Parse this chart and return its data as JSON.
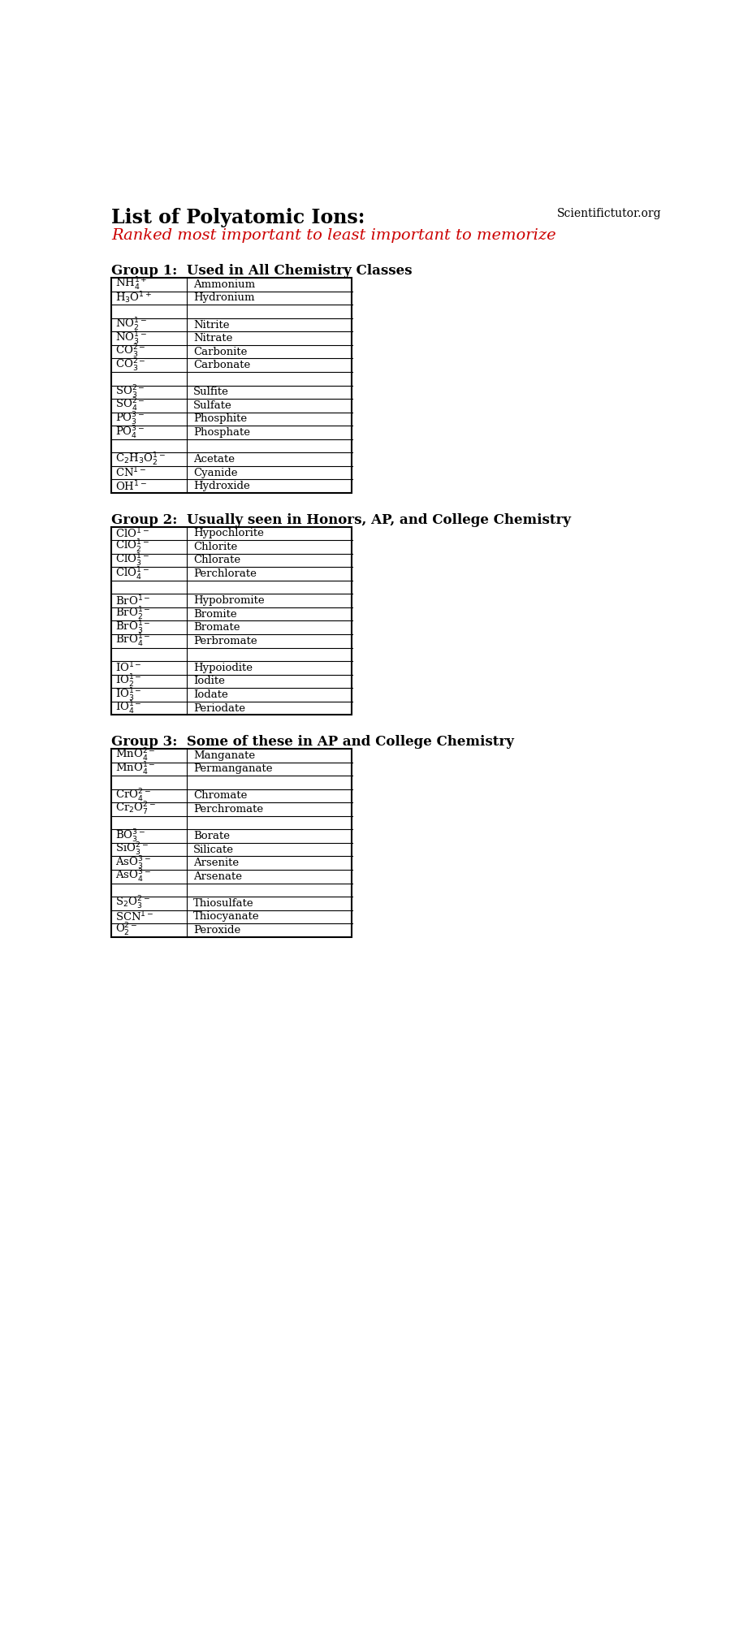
{
  "title": "List of Polyatomic Ions:",
  "subtitle": "Ranked most important to least important to memorize",
  "website": "Scientifictutor.org",
  "group1_header": "Group 1:  Used in All Chemistry Classes",
  "group2_header": "Group 2:  Usually seen in Honors, AP, and College Chemistry",
  "group3_header": "Group 3:  Some of these in AP and College Chemistry",
  "group1_rows": [
    [
      "NH$_4^{1+}$",
      "Ammonium"
    ],
    [
      "H$_3$O$^{1+}$",
      "Hydronium"
    ],
    [
      "",
      ""
    ],
    [
      "NO$_2^{1-}$",
      "Nitrite"
    ],
    [
      "NO$_3^{1-}$",
      "Nitrate"
    ],
    [
      "CO$_3^{2-}$",
      "Carbonite"
    ],
    [
      "CO$_3^{2-}$",
      "Carbonate"
    ],
    [
      "",
      ""
    ],
    [
      "SO$_3^{2-}$",
      "Sulfite"
    ],
    [
      "SO$_4^{2-}$",
      "Sulfate"
    ],
    [
      "PO$_3^{3-}$",
      "Phosphite"
    ],
    [
      "PO$_4^{3-}$",
      "Phosphate"
    ],
    [
      "",
      ""
    ],
    [
      "C$_2$H$_3$O$_2^{1-}$",
      "Acetate"
    ],
    [
      "CN$^{1-}$",
      "Cyanide"
    ],
    [
      "OH$^{1-}$",
      "Hydroxide"
    ]
  ],
  "group2_rows": [
    [
      "ClO$^{1-}$",
      "Hypochlorite"
    ],
    [
      "ClO$_2^{1-}$",
      "Chlorite"
    ],
    [
      "ClO$_3^{1-}$",
      "Chlorate"
    ],
    [
      "ClO$_4^{1-}$",
      "Perchlorate"
    ],
    [
      "",
      ""
    ],
    [
      "BrO$^{1-}$",
      "Hypobromite"
    ],
    [
      "BrO$_2^{1-}$",
      "Bromite"
    ],
    [
      "BrO$_3^{1-}$",
      "Bromate"
    ],
    [
      "BrO$_4^{1-}$",
      "Perbromate"
    ],
    [
      "",
      ""
    ],
    [
      "IO$^{1-}$",
      "Hypoiodite"
    ],
    [
      "IO$_2^{1-}$",
      "Iodite"
    ],
    [
      "IO$_3^{1-}$",
      "Iodate"
    ],
    [
      "IO$_4^{1-}$",
      "Periodate"
    ]
  ],
  "group3_rows": [
    [
      "MnO$_4^{2-}$",
      "Manganate"
    ],
    [
      "MnO$_4^{1-}$",
      "Permanganate"
    ],
    [
      "",
      ""
    ],
    [
      "CrO$_4^{2-}$",
      "Chromate"
    ],
    [
      "Cr$_2$O$_7^{2-}$",
      "Perchromate"
    ],
    [
      "",
      ""
    ],
    [
      "BO$_3^{3-}$",
      "Borate"
    ],
    [
      "SiO$_3^{2-}$",
      "Silicate"
    ],
    [
      "AsO$_3^{3-}$",
      "Arsenite"
    ],
    [
      "AsO$_4^{3-}$",
      "Arsenate"
    ],
    [
      "",
      ""
    ],
    [
      "S$_2$O$_3^{2-}$",
      "Thiosulfate"
    ],
    [
      "SCN$^{1-}$",
      "Thiocyanate"
    ],
    [
      "O$_2^{2-}$",
      "Peroxide"
    ]
  ],
  "title_color": "#000000",
  "subtitle_color": "#cc0000",
  "header_color": "#000000",
  "text_color": "#000000",
  "bg_color": "#ffffff"
}
